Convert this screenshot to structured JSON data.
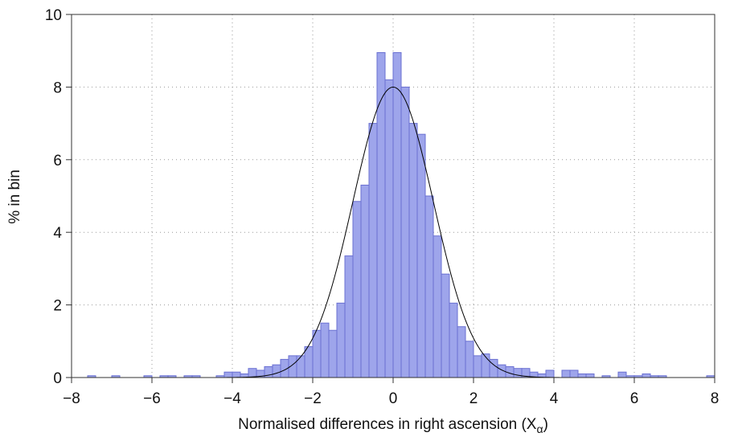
{
  "chart_data": {
    "type": "histogram",
    "x_label": {
      "text": "Normalised differences in right ascension  (X",
      "subscript": "α",
      "close": ")"
    },
    "y_label": "% in bin",
    "bins": [
      -8,
      -7.8,
      -7.6,
      -7.4,
      -7.2,
      -7,
      -6.8,
      -6.6,
      -6.4,
      -6.2,
      -6,
      -5.8,
      -5.6,
      -5.4,
      -5.2,
      -5,
      -4.8,
      -4.6,
      -4.4,
      -4.2,
      -4,
      -3.8,
      -3.6,
      -3.4,
      -3.2,
      -3,
      -2.8,
      -2.6,
      -2.4,
      -2.2,
      -2,
      -1.8,
      -1.6,
      -1.4,
      -1.2,
      -1,
      -0.8,
      -0.6,
      -0.4,
      -0.2,
      0,
      0.2,
      0.4,
      0.6,
      0.8,
      1,
      1.2,
      1.4,
      1.6,
      1.8,
      2,
      2.2,
      2.4,
      2.6,
      2.8,
      3,
      3.2,
      3.4,
      3.6,
      3.8,
      4,
      4.2,
      4.4,
      4.6,
      4.8,
      5,
      5.2,
      5.4,
      5.6,
      5.8,
      6,
      6.2,
      6.4,
      6.6,
      6.8,
      7,
      7.2,
      7.4,
      7.6,
      7.8,
      8
    ],
    "values": [
      0,
      0,
      0.05,
      0,
      0,
      0.05,
      0,
      0,
      0,
      0.05,
      0,
      0.05,
      0.05,
      0,
      0.05,
      0.05,
      0,
      0,
      0.05,
      0.15,
      0.15,
      0.1,
      0.25,
      0.2,
      0.3,
      0.35,
      0.5,
      0.6,
      0.6,
      0.85,
      1.3,
      1.5,
      1.3,
      2.05,
      3.35,
      4.85,
      5.3,
      7.0,
      8.95,
      8.2,
      8.95,
      8.0,
      7.0,
      6.7,
      5.0,
      3.9,
      2.85,
      2.05,
      1.4,
      1.0,
      0.6,
      0.65,
      0.5,
      0.35,
      0.3,
      0.25,
      0.25,
      0.15,
      0.1,
      0.2,
      0,
      0.2,
      0.2,
      0.1,
      0.1,
      0,
      0.05,
      0,
      0.15,
      0.05,
      0.05,
      0.1,
      0.05,
      0.05,
      0,
      0,
      0,
      0,
      0,
      0.05
    ],
    "color": "#9ea5eb",
    "edge_color": "#6a70d2",
    "fit_curve": {
      "mean": 0,
      "sd": 1,
      "peak": 8
    },
    "xlim": [
      -8,
      8
    ],
    "xticks": [
      {
        "value": -8,
        "label": "−8"
      },
      {
        "value": -6,
        "label": "−6"
      },
      {
        "value": -4,
        "label": "−4"
      },
      {
        "value": -2,
        "label": "−2"
      },
      0,
      2,
      4,
      6,
      8
    ],
    "ylim": [
      0,
      10
    ],
    "yticks": [
      0,
      2,
      4,
      6,
      8,
      10
    ],
    "grid": true
  }
}
